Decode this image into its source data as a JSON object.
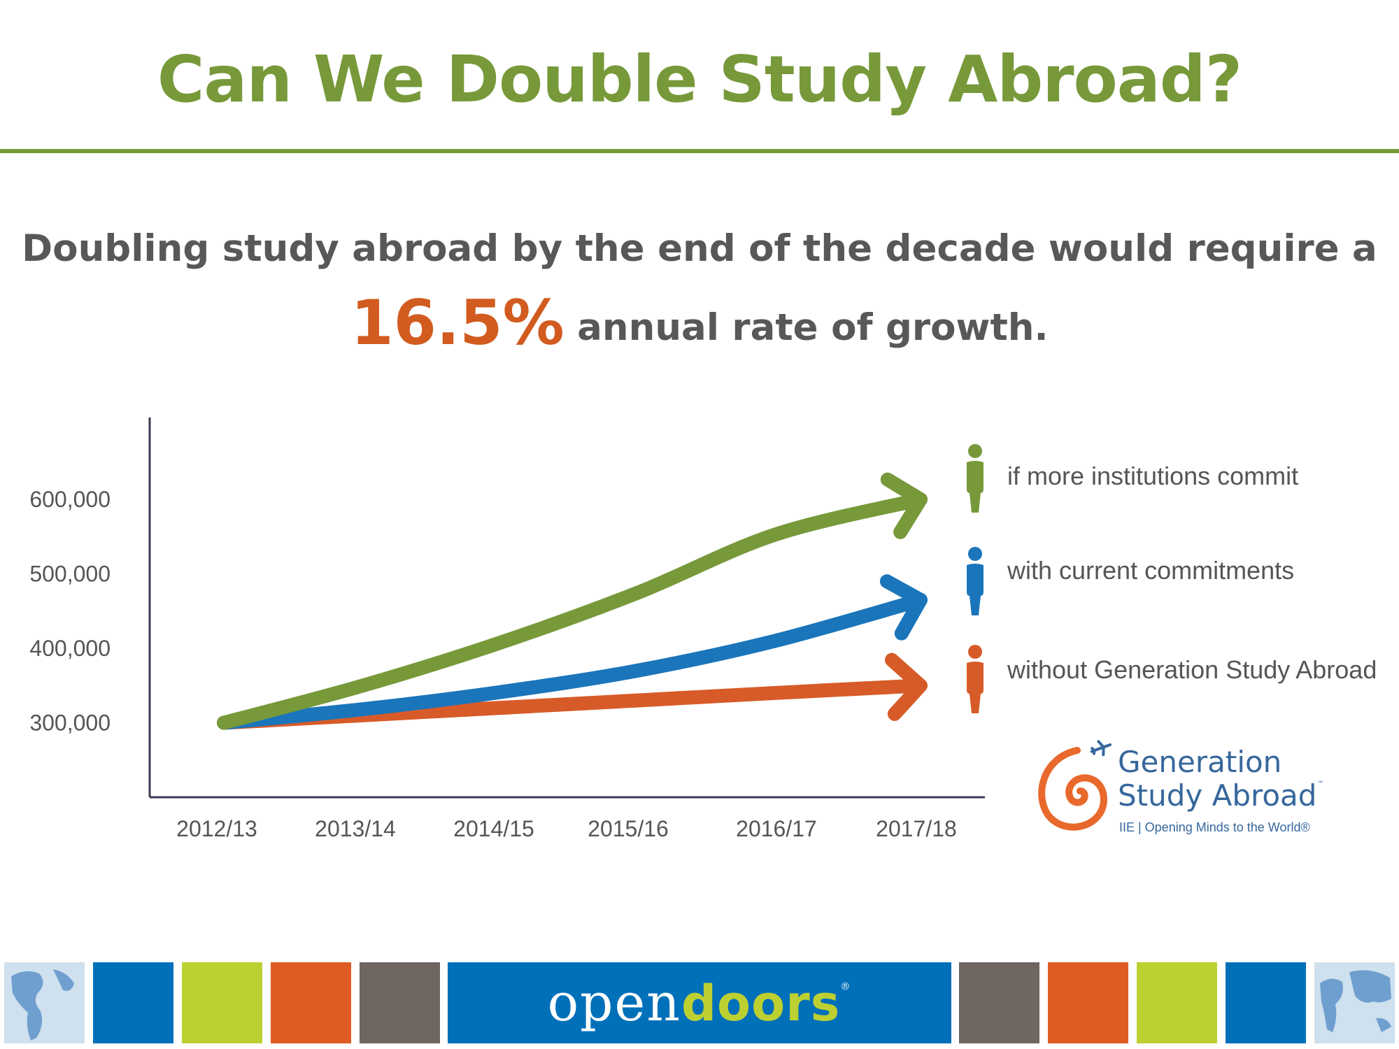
{
  "title": "Can We Double Study Abroad?",
  "subtitle": {
    "line1": "Doubling study abroad by the end of the decade would require a",
    "highlight": "16.5%",
    "line2_rest": " annual rate of growth."
  },
  "colors": {
    "title": "#77993a",
    "highlight": "#d25b1f",
    "green": "#77993a",
    "blue": "#1a75bb",
    "orange": "#d75b28",
    "axis": "#3b3b55",
    "footer_blue": "#0070b9",
    "footer_lime": "#bdd031",
    "footer_orange": "#de5c24",
    "footer_gray": "#6f6561"
  },
  "chart_data": {
    "type": "line",
    "categories": [
      "2012/13",
      "2013/14",
      "2014/15",
      "2015/16",
      "2016/17",
      "2017/18"
    ],
    "ytick_labels": [
      "300,000",
      "400,000",
      "500,000",
      "600,000"
    ],
    "yticks": [
      300000,
      400000,
      500000,
      600000
    ],
    "ylim": [
      200000,
      710000
    ],
    "series": [
      {
        "name": "if more institutions commit",
        "color": "#77993a",
        "values": [
          300000,
          349500,
          407200,
          474400,
          552700,
          600000
        ]
      },
      {
        "name": "with current commitments",
        "color": "#1a75bb",
        "values": [
          300000,
          318000,
          341000,
          370000,
          410000,
          465000
        ]
      },
      {
        "name": "without Generation Study Abroad",
        "color": "#d75b28",
        "values": [
          300000,
          310000,
          320000,
          330000,
          340000,
          350000
        ]
      }
    ],
    "marker": "arrowhead at end of each series",
    "legend_position": "right"
  },
  "logo": {
    "line1": "Generation",
    "line2": "Study Abroad",
    "trademark": "™",
    "tagline": "IIE | Opening Minds to the World®"
  },
  "footer": {
    "brand_regular": "open",
    "brand_bold": "doors",
    "brand_mark": "®"
  }
}
